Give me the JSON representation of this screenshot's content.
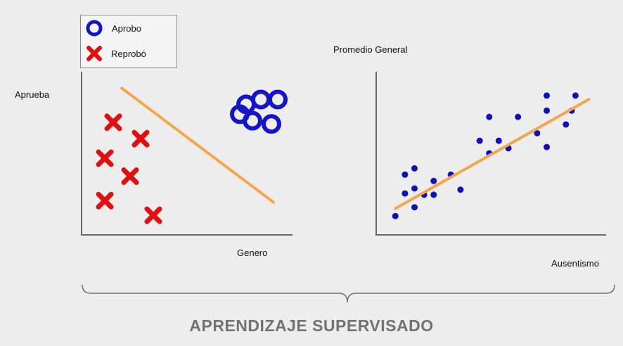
{
  "title": "APRENDIZAJE SUPERVISADO",
  "legend": {
    "pass_label": "Aprobo",
    "fail_label": "Reprobó"
  },
  "left_chart": {
    "y_label": "Aprueba",
    "x_label": "Genero"
  },
  "right_chart": {
    "y_label": "Promedio General",
    "x_label": "Ausentismo"
  },
  "colors": {
    "pass": "#1515c8",
    "fail": "#e01010",
    "line": "#f2a64d",
    "axis": "#6a6a6a",
    "points": "#1010b8"
  },
  "chart_data": [
    {
      "type": "scatter",
      "series": [
        {
          "name": "Aprobo",
          "marker": "ring",
          "points": [
            [
              0.78,
              0.8
            ],
            [
              0.85,
              0.83
            ],
            [
              0.93,
              0.83
            ],
            [
              0.75,
              0.74
            ],
            [
              0.81,
              0.7
            ],
            [
              0.9,
              0.68
            ]
          ]
        },
        {
          "name": "Reprobó",
          "marker": "x",
          "points": [
            [
              0.15,
              0.69
            ],
            [
              0.28,
              0.59
            ],
            [
              0.11,
              0.47
            ],
            [
              0.23,
              0.36
            ],
            [
              0.11,
              0.21
            ],
            [
              0.34,
              0.12
            ]
          ]
        }
      ],
      "boundary_line": [
        [
          0.19,
          0.9
        ],
        [
          0.91,
          0.2
        ]
      ],
      "xlim": [
        0,
        1
      ],
      "ylim": [
        0,
        1
      ],
      "ticks": "none",
      "grid": false
    },
    {
      "type": "scatter",
      "series": [
        {
          "points": [
            [
              0.1,
              0.15
            ],
            [
              0.15,
              0.33
            ],
            [
              0.15,
              0.48
            ],
            [
              0.2,
              0.22
            ],
            [
              0.2,
              0.37
            ],
            [
              0.2,
              0.53
            ],
            [
              0.25,
              0.32
            ],
            [
              0.3,
              0.43
            ],
            [
              0.3,
              0.32
            ],
            [
              0.39,
              0.48
            ],
            [
              0.44,
              0.36
            ],
            [
              0.54,
              0.75
            ],
            [
              0.59,
              0.65
            ],
            [
              0.59,
              0.94
            ],
            [
              0.64,
              0.75
            ],
            [
              0.69,
              0.69
            ],
            [
              0.74,
              0.94
            ],
            [
              0.84,
              0.81
            ],
            [
              0.89,
              1.11
            ],
            [
              0.89,
              0.99
            ],
            [
              0.89,
              0.7
            ],
            [
              0.99,
              0.88
            ],
            [
              1.02,
              0.99
            ],
            [
              1.04,
              1.11
            ]
          ]
        }
      ],
      "trend_line": [
        [
          0.1,
          0.21
        ],
        [
          1.11,
          1.08
        ]
      ],
      "xlim": [
        0,
        1.2
      ],
      "ylim": [
        0,
        1.3
      ],
      "ticks": "none",
      "grid": false
    }
  ]
}
